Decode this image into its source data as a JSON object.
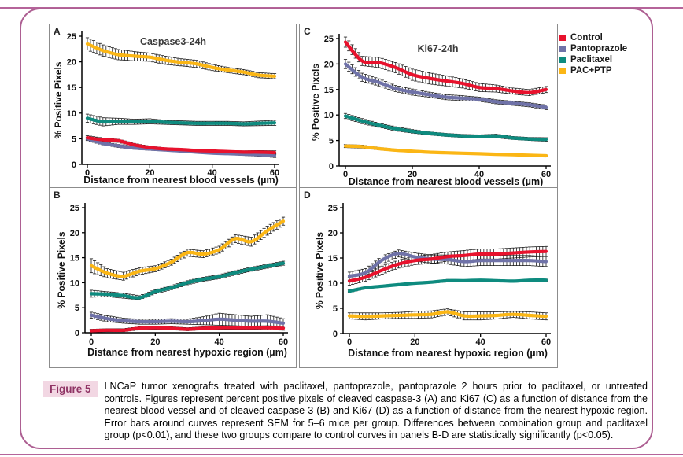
{
  "page": {
    "accent_rule_color": "#b5649a",
    "frame_border_color": "#ad5f92"
  },
  "legend": {
    "items": [
      {
        "label": "Control",
        "color": "#e8122d"
      },
      {
        "label": "Pantoprazole",
        "color": "#6f72a8"
      },
      {
        "label": "Paclitaxel",
        "color": "#0e8b7f"
      },
      {
        "label": "PAC+PTP",
        "color": "#fbb615"
      }
    ]
  },
  "caption": {
    "label": "Figure 5",
    "text": "LNCaP tumor xenografts treated with paclitaxel, pantoprazole, pantoprazole 2 hours prior to paclitaxel, or untreated controls. Figures represent percent positive pixels of cleaved caspase-3 (A) and Ki67 (C) as a function of distance from the nearest blood vessel and of cleaved caspase-3 (B) and Ki67 (D) as a function of distance from the nearest hypoxic region. Error bars around curves represent SEM for 5–6 mice per group. Differences between combination group and paclitaxel group (p<0.01), and these two groups compare to control curves in panels B-D are statistically significantly (p<0.05)."
  },
  "chart_data": [
    {
      "id": "A",
      "panel_label": "A",
      "type": "line",
      "title": "Caspase3-24h",
      "xlabel": "Distance from nearest blood vessels (µm)",
      "ylabel": "% Positive Pixels",
      "xlim": [
        0,
        60
      ],
      "ylim": [
        0,
        25
      ],
      "xticks": [
        0,
        20,
        40,
        60
      ],
      "yticks": [
        0,
        5,
        10,
        15,
        20,
        25
      ],
      "x": [
        0,
        5,
        10,
        15,
        20,
        25,
        30,
        35,
        40,
        45,
        50,
        55,
        60
      ],
      "series": [
        {
          "name": "Pantoprazole",
          "color": "#6f72a8",
          "values": [
            5.0,
            4.1,
            3.6,
            3.2,
            3.0,
            2.8,
            2.6,
            2.4,
            2.2,
            2.1,
            2.0,
            1.9,
            1.7
          ],
          "sem": [
            0.35,
            0.3,
            0.3,
            0.25,
            0.25,
            0.2,
            0.2,
            0.2,
            0.2,
            0.2,
            0.25,
            0.3,
            0.35
          ]
        },
        {
          "name": "Control",
          "color": "#e8122d",
          "values": [
            5.2,
            4.8,
            4.6,
            3.8,
            3.3,
            3.0,
            2.9,
            2.7,
            2.6,
            2.5,
            2.4,
            2.4,
            2.3
          ],
          "sem": [
            0.4,
            0.35,
            0.3,
            0.3,
            0.25,
            0.25,
            0.2,
            0.2,
            0.2,
            0.2,
            0.25,
            0.3,
            0.35
          ]
        },
        {
          "name": "Paclitaxel",
          "color": "#0e8b7f",
          "values": [
            9.0,
            8.3,
            8.4,
            8.3,
            8.4,
            8.2,
            8.1,
            8.0,
            8.0,
            8.0,
            7.9,
            8.0,
            8.1
          ],
          "sem": [
            0.8,
            0.8,
            0.6,
            0.5,
            0.5,
            0.4,
            0.4,
            0.4,
            0.4,
            0.4,
            0.4,
            0.45,
            0.5
          ]
        },
        {
          "name": "PAC+PTP",
          "color": "#fbb615",
          "values": [
            23.5,
            22.2,
            21.4,
            21.1,
            20.9,
            20.3,
            19.9,
            19.6,
            18.9,
            18.4,
            18.0,
            17.4,
            17.2
          ],
          "sem": [
            1.2,
            1.1,
            1.0,
            0.9,
            0.8,
            0.8,
            0.7,
            0.7,
            0.6,
            0.5,
            0.5,
            0.5,
            0.5
          ]
        }
      ]
    },
    {
      "id": "B",
      "panel_label": "B",
      "type": "line",
      "title": "",
      "xlabel": "Distance from nearest hypoxic region (µm)",
      "ylabel": "% Positive Pixels",
      "xlim": [
        0,
        60
      ],
      "ylim": [
        0,
        25
      ],
      "xticks": [
        0,
        20,
        40,
        60
      ],
      "yticks": [
        0,
        5,
        10,
        15,
        20,
        25
      ],
      "x": [
        0,
        5,
        10,
        15,
        20,
        25,
        30,
        35,
        40,
        45,
        50,
        55,
        60
      ],
      "series": [
        {
          "name": "Control",
          "color": "#e8122d",
          "values": [
            0.4,
            0.5,
            0.5,
            0.9,
            1.0,
            0.9,
            0.7,
            0.9,
            1.0,
            1.0,
            1.0,
            1.0,
            0.9
          ],
          "sem": [
            0.3,
            0.3,
            0.3,
            0.3,
            0.35,
            0.3,
            0.3,
            0.3,
            0.35,
            0.35,
            0.35,
            0.4,
            0.4
          ]
        },
        {
          "name": "Pantoprazole",
          "color": "#6f72a8",
          "values": [
            3.5,
            2.8,
            2.4,
            2.2,
            2.2,
            2.3,
            2.2,
            2.4,
            2.7,
            2.5,
            2.3,
            2.3,
            1.9
          ],
          "sem": [
            0.6,
            0.6,
            0.5,
            0.5,
            0.5,
            0.5,
            0.5,
            0.8,
            1.2,
            1.1,
            1.0,
            1.3,
            0.9
          ]
        },
        {
          "name": "Paclitaxel",
          "color": "#0e8b7f",
          "values": [
            7.8,
            7.7,
            7.4,
            7.0,
            8.2,
            9.0,
            10.0,
            10.7,
            11.2,
            12.0,
            12.7,
            13.3,
            13.9
          ],
          "sem": [
            0.7,
            0.5,
            0.5,
            0.4,
            0.4,
            0.4,
            0.4,
            0.4,
            0.4,
            0.4,
            0.4,
            0.4,
            0.4
          ]
        },
        {
          "name": "PAC+PTP",
          "color": "#fbb615",
          "values": [
            13.4,
            11.9,
            11.3,
            12.3,
            12.8,
            14.1,
            16.0,
            15.7,
            16.6,
            18.8,
            18.2,
            20.4,
            22.3
          ],
          "sem": [
            1.4,
            0.9,
            0.8,
            0.7,
            0.6,
            0.6,
            0.7,
            0.7,
            0.7,
            0.8,
            0.9,
            0.9,
            0.8
          ]
        }
      ]
    },
    {
      "id": "C",
      "panel_label": "C",
      "type": "line",
      "title": "Ki67-24h",
      "xlabel": "Distance from nearest blood vessels (µm)",
      "ylabel": "% Positive Pixels",
      "xlim": [
        0,
        60
      ],
      "ylim": [
        0,
        25
      ],
      "xticks": [
        0,
        20,
        40,
        60
      ],
      "yticks": [
        0,
        5,
        10,
        15,
        20,
        25
      ],
      "x": [
        0,
        5,
        10,
        15,
        20,
        25,
        30,
        35,
        40,
        45,
        50,
        55,
        60
      ],
      "series": [
        {
          "name": "Pantoprazole",
          "color": "#6f72a8",
          "values": [
            20.0,
            17.4,
            16.4,
            15.2,
            14.5,
            14.0,
            13.5,
            13.3,
            13.1,
            12.6,
            12.3,
            12.0,
            11.5
          ],
          "sem": [
            0.9,
            0.8,
            0.7,
            0.6,
            0.6,
            0.5,
            0.5,
            0.5,
            0.4,
            0.4,
            0.4,
            0.4,
            0.45
          ]
        },
        {
          "name": "Control",
          "color": "#e8122d",
          "values": [
            24.3,
            20.6,
            20.3,
            19.3,
            17.9,
            17.2,
            16.7,
            16.2,
            15.4,
            15.2,
            14.7,
            14.4,
            15.0
          ],
          "sem": [
            1.0,
            0.9,
            1.0,
            1.0,
            1.1,
            1.1,
            1.0,
            0.9,
            0.8,
            0.7,
            0.6,
            0.6,
            0.6
          ]
        },
        {
          "name": "Paclitaxel",
          "color": "#0e8b7f",
          "values": [
            9.8,
            8.8,
            8.0,
            7.3,
            6.8,
            6.4,
            6.1,
            5.9,
            5.8,
            5.9,
            5.5,
            5.3,
            5.2
          ],
          "sem": [
            0.5,
            0.5,
            0.4,
            0.4,
            0.35,
            0.3,
            0.3,
            0.3,
            0.3,
            0.35,
            0.3,
            0.3,
            0.35
          ]
        },
        {
          "name": "PAC+PTP",
          "color": "#fbb615",
          "values": [
            3.9,
            3.8,
            3.4,
            3.1,
            2.9,
            2.7,
            2.6,
            2.5,
            2.4,
            2.3,
            2.2,
            2.1,
            2.0
          ],
          "sem": [
            0.3,
            0.3,
            0.25,
            0.2,
            0.2,
            0.2,
            0.2,
            0.15,
            0.15,
            0.15,
            0.15,
            0.15,
            0.15
          ]
        }
      ]
    },
    {
      "id": "D",
      "panel_label": "D",
      "type": "line",
      "title": "",
      "xlabel": "Distance from nearest hypoxic region (µm)",
      "ylabel": "% Positive Pixels",
      "xlim": [
        0,
        60
      ],
      "ylim": [
        0,
        25
      ],
      "xticks": [
        0,
        20,
        40,
        60
      ],
      "yticks": [
        0,
        5,
        10,
        15,
        20,
        25
      ],
      "x": [
        0,
        5,
        10,
        15,
        20,
        25,
        30,
        35,
        40,
        45,
        50,
        55,
        60
      ],
      "series": [
        {
          "name": "Pantoprazole",
          "color": "#6f72a8",
          "values": [
            11.4,
            12.1,
            14.6,
            15.9,
            15.2,
            14.8,
            14.7,
            14.3,
            14.5,
            14.5,
            14.5,
            14.5,
            14.3
          ],
          "sem": [
            0.8,
            0.8,
            0.8,
            0.7,
            0.8,
            0.8,
            0.9,
            1.0,
            1.0,
            1.0,
            1.0,
            1.0,
            1.0
          ]
        },
        {
          "name": "Control",
          "color": "#e8122d",
          "values": [
            10.4,
            11.2,
            12.6,
            13.8,
            14.5,
            14.8,
            15.3,
            15.5,
            15.8,
            15.8,
            16.0,
            16.2,
            16.3
          ],
          "sem": [
            0.8,
            0.8,
            0.8,
            0.8,
            0.8,
            0.9,
            0.9,
            1.0,
            1.0,
            1.0,
            1.0,
            1.0,
            1.0
          ]
        },
        {
          "name": "Paclitaxel",
          "color": "#0e8b7f",
          "values": [
            8.4,
            9.1,
            9.4,
            9.7,
            10.0,
            10.2,
            10.5,
            10.5,
            10.6,
            10.5,
            10.4,
            10.6,
            10.6
          ],
          "sem": [
            0.25,
            0.2,
            0.2,
            0.2,
            0.2,
            0.2,
            0.25,
            0.2,
            0.2,
            0.2,
            0.2,
            0.2,
            0.2
          ]
        },
        {
          "name": "PAC+PTP",
          "color": "#fbb615",
          "values": [
            3.5,
            3.4,
            3.5,
            3.6,
            3.7,
            3.8,
            4.3,
            3.5,
            3.5,
            3.6,
            3.8,
            3.6,
            3.4
          ],
          "sem": [
            0.6,
            0.7,
            0.6,
            0.6,
            0.7,
            0.7,
            0.6,
            0.8,
            0.8,
            0.7,
            0.6,
            0.7,
            0.7
          ]
        }
      ]
    }
  ]
}
